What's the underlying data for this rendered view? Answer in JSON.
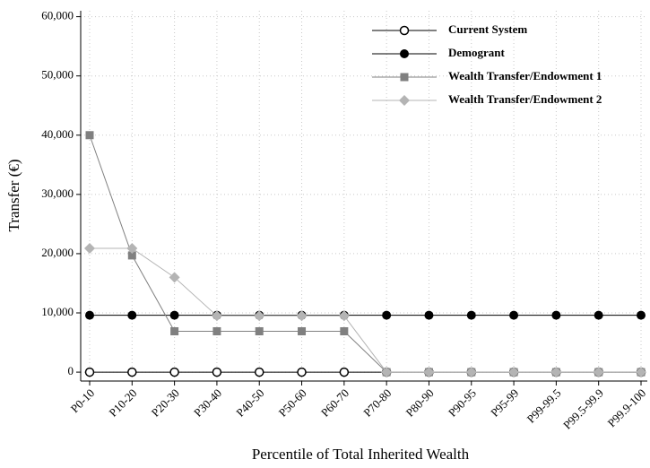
{
  "chart_data": {
    "type": "line",
    "x_label": "Percentile of Total Inherited Wealth",
    "y_label": "Transfer (€)",
    "categories": [
      "P0-10",
      "P10-20",
      "P20-30",
      "P30-40",
      "P40-50",
      "P50-60",
      "P60-70",
      "P70-80",
      "P80-90",
      "P90-95",
      "P95-99",
      "P99-99.5",
      "P99.5-99.9",
      "P99.9-100"
    ],
    "series": [
      {
        "name": "Current System",
        "color": "#000000",
        "marker": "open-circle",
        "values": [
          0,
          0,
          0,
          0,
          0,
          0,
          0,
          0,
          0,
          0,
          0,
          0,
          0,
          0
        ]
      },
      {
        "name": "Demogrant",
        "color": "#000000",
        "marker": "circle",
        "values": [
          9600,
          9600,
          9600,
          9600,
          9600,
          9600,
          9600,
          9600,
          9600,
          9600,
          9600,
          9600,
          9600,
          9600
        ]
      },
      {
        "name": "Wealth Transfer/Endowment 1",
        "color": "#808080",
        "marker": "square",
        "values": [
          40000,
          19700,
          6900,
          6900,
          6900,
          6900,
          6900,
          0,
          0,
          0,
          0,
          0,
          0,
          0
        ]
      },
      {
        "name": "Wealth Transfer/Endowment 2",
        "color": "#b4b4b4",
        "marker": "diamond",
        "values": [
          20900,
          20900,
          16000,
          9500,
          9500,
          9500,
          9500,
          0,
          0,
          0,
          0,
          0,
          0,
          0
        ]
      }
    ],
    "ylim": [
      -1500,
      61000
    ],
    "yticks": [
      0,
      {
        "value": 10000,
        "label": "10,000"
      },
      {
        "value": 20000,
        "label": "20,000"
      },
      {
        "value": 30000,
        "label": "30,000"
      },
      {
        "value": 40000,
        "label": "40,000"
      },
      {
        "value": 50000,
        "label": "50,000"
      },
      {
        "value": 60000,
        "label": "60,000"
      }
    ],
    "grid": true,
    "legend": "top-right"
  }
}
